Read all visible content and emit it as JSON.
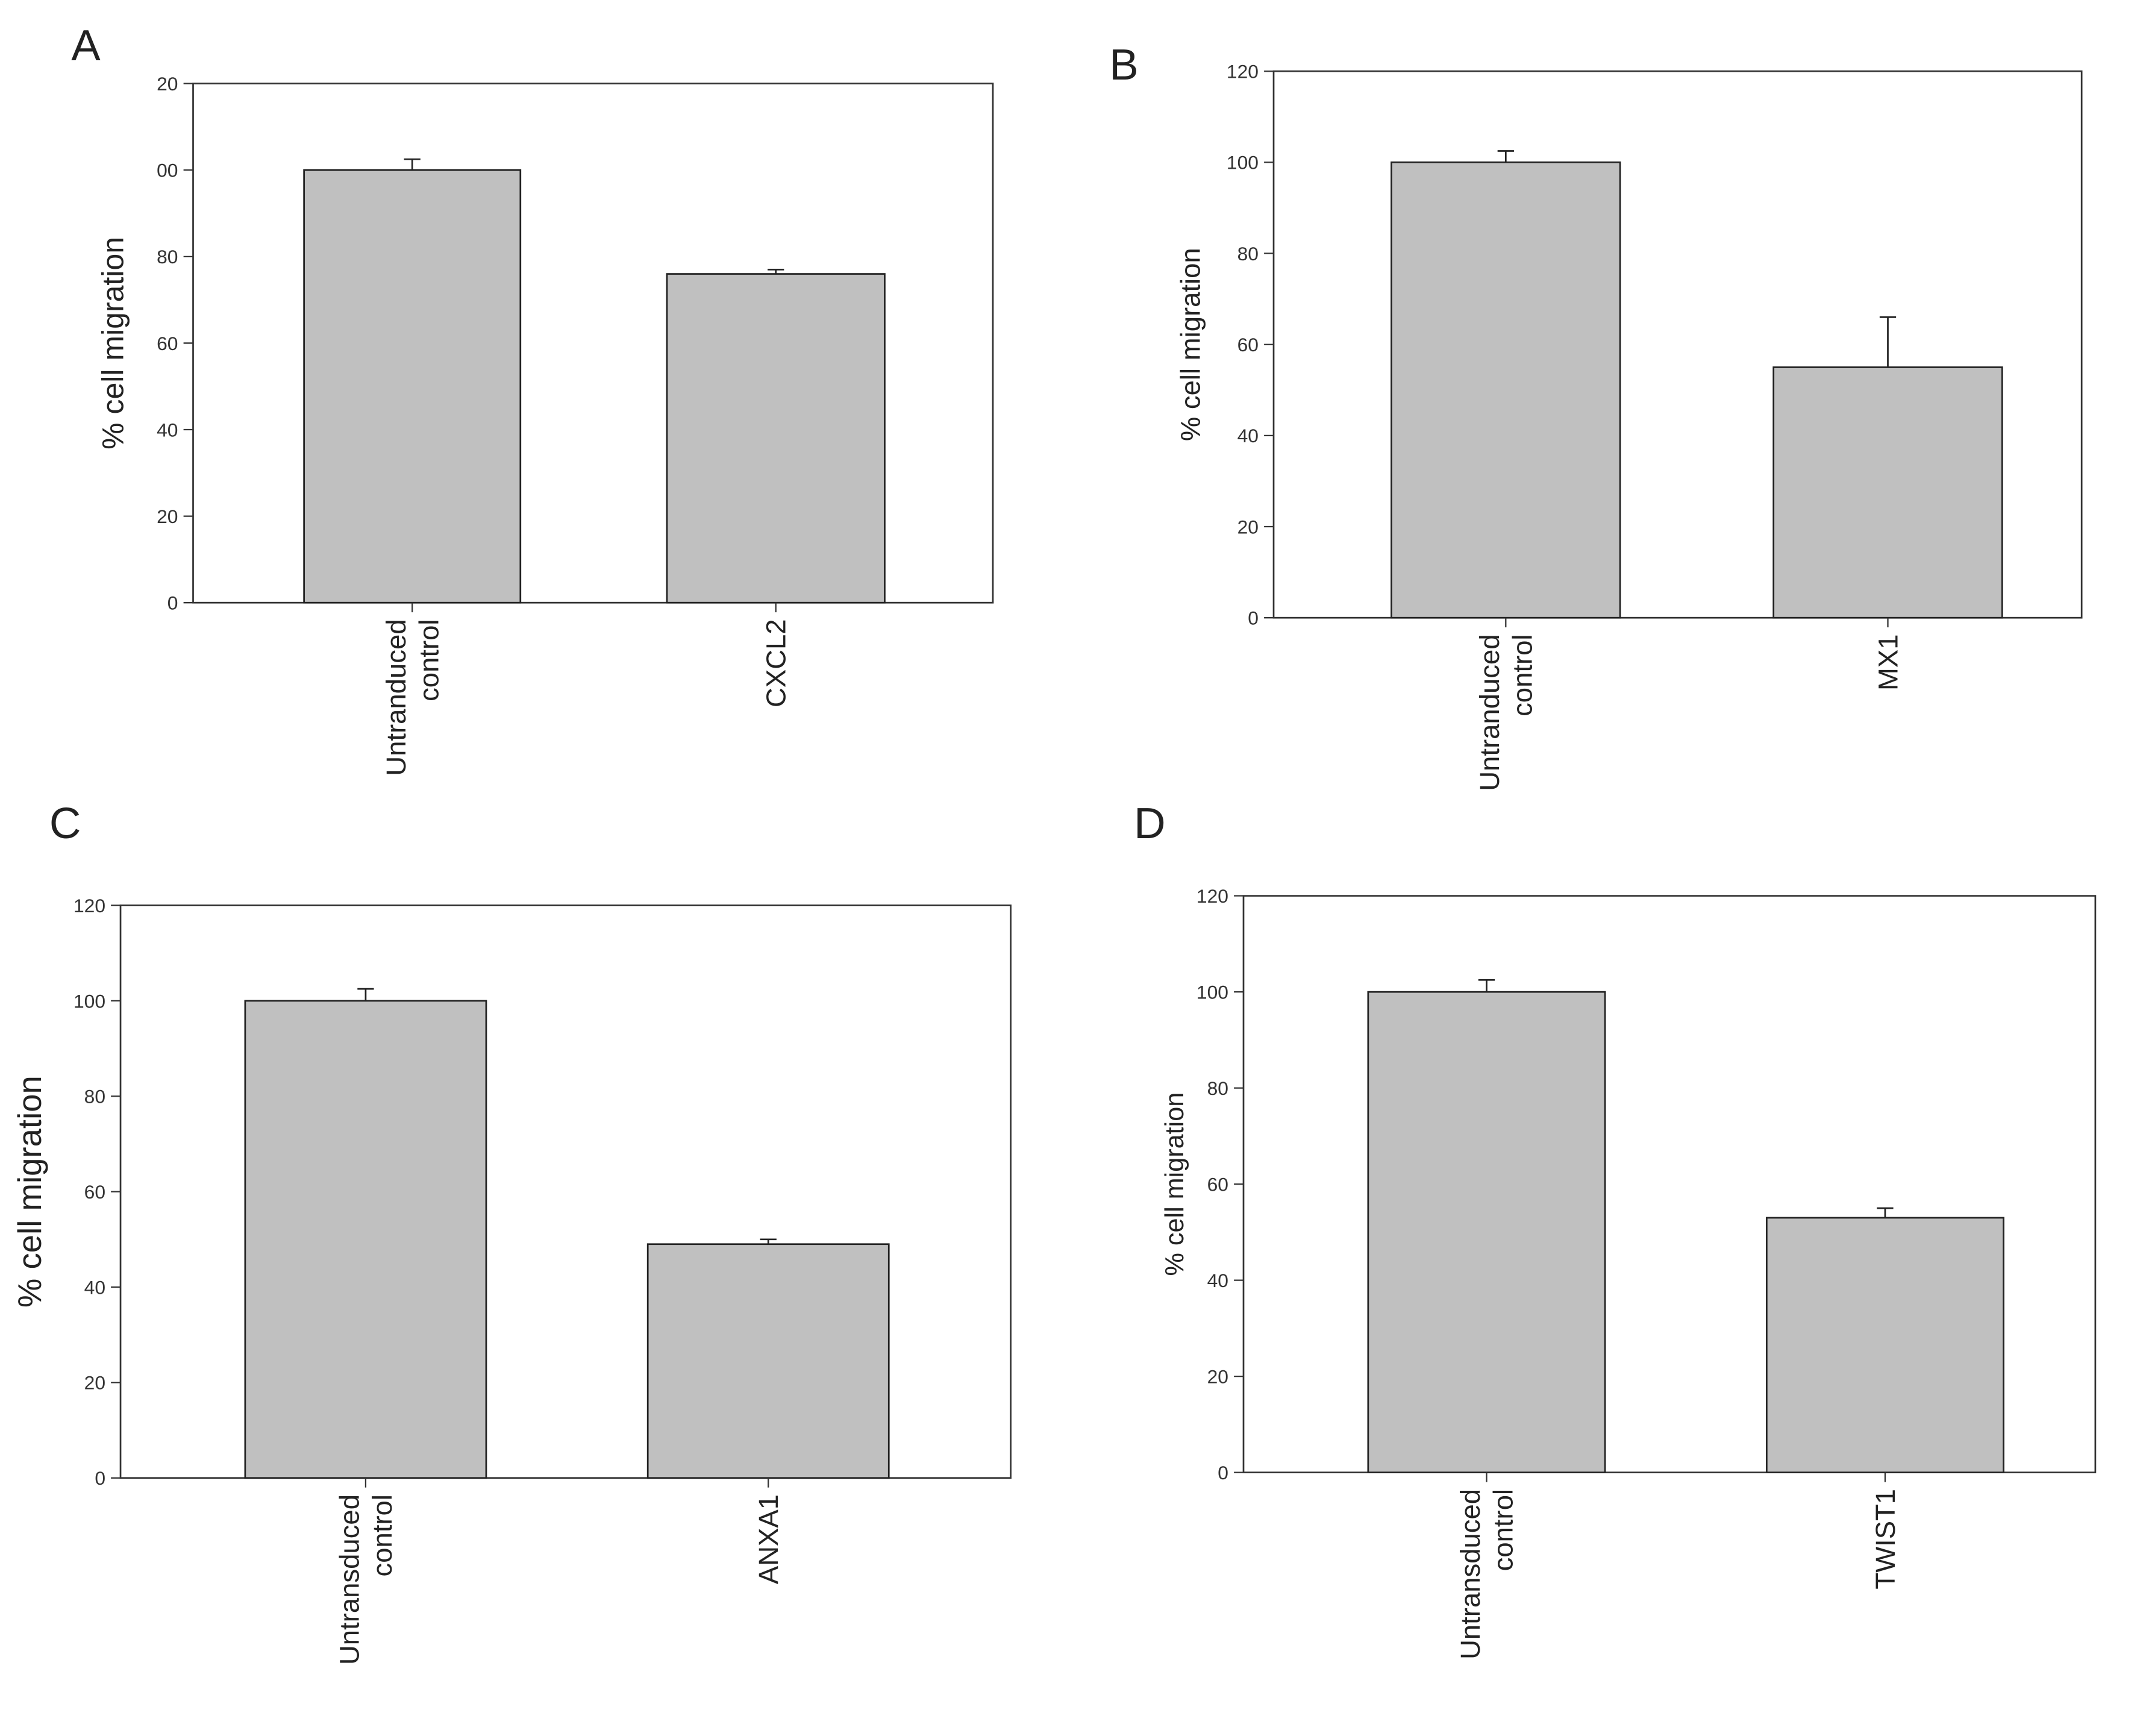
{
  "chart_data": [
    {
      "type": "bar",
      "title": "A",
      "y_label": "% cell migration",
      "categories": [
        [
          "Untranduced",
          "control"
        ],
        [
          "CXCL2"
        ]
      ],
      "values": [
        100,
        76
      ],
      "errors": [
        2.5,
        1
      ],
      "color": "#c0c0c0",
      "ylim": [
        0,
        120
      ],
      "yticks": [
        0,
        20,
        40,
        60,
        80,
        {
          "value": 100,
          "label": "00"
        },
        {
          "value": 120,
          "label": "20"
        }
      ]
    },
    {
      "type": "bar",
      "title": "B",
      "y_label": "% cell migration",
      "categories": [
        [
          "Untranduced",
          "control"
        ],
        [
          "MX1"
        ]
      ],
      "values": [
        100,
        55
      ],
      "errors": [
        2.5,
        11
      ],
      "color": "#c0c0c0",
      "ylim": [
        0,
        120
      ],
      "yticks": [
        0,
        20,
        40,
        60,
        80,
        100,
        120
      ]
    },
    {
      "type": "bar",
      "title": "C",
      "y_label": "% cell migration",
      "categories": [
        [
          "Untransduced",
          "control"
        ],
        [
          "ANXA1"
        ]
      ],
      "values": [
        100,
        49
      ],
      "errors": [
        2.5,
        1
      ],
      "color": "#c0c0c0",
      "ylim": [
        0,
        120
      ],
      "yticks": [
        0,
        20,
        40,
        60,
        80,
        100,
        120
      ]
    },
    {
      "type": "bar",
      "title": "D",
      "y_label": "% cell migration",
      "categories": [
        [
          "Untransduced",
          "control"
        ],
        [
          "TWIST1"
        ]
      ],
      "values": [
        100,
        53
      ],
      "errors": [
        2.5,
        2
      ],
      "color": "#c0c0c0",
      "ylim": [
        0,
        120
      ],
      "yticks": [
        0,
        20,
        40,
        60,
        80,
        100,
        120
      ]
    }
  ]
}
